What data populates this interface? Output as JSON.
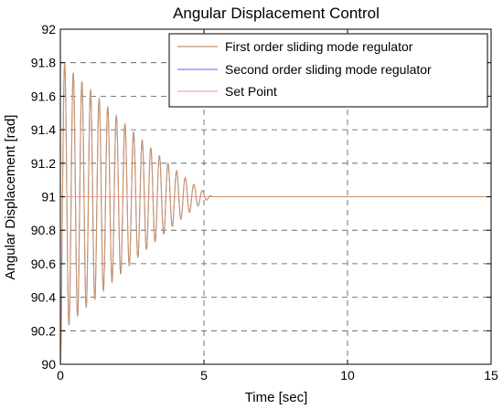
{
  "chart_data": {
    "type": "line",
    "title": "Angular Displacement Control",
    "xlabel": "Time [sec]",
    "ylabel": "Angular Displacement [rad]",
    "xlim": [
      0,
      15
    ],
    "ylim": [
      90,
      92
    ],
    "x_ticks": [
      0,
      5,
      10,
      15
    ],
    "y_ticks": [
      90,
      90.2,
      90.4,
      90.6,
      90.8,
      91,
      91.2,
      91.4,
      91.6,
      91.8,
      92
    ],
    "grid": true,
    "legend_position": "top-right",
    "series": [
      {
        "name": "First order sliding mode regulator",
        "color": "#c8956a",
        "oscillation": {
          "equilibrium": 91,
          "initial_value": 90,
          "peak_amplitude": 0.82,
          "period": 0.3,
          "envelope_end_time": 5.3,
          "settled_after": 5.3
        }
      },
      {
        "name": "Second order sliding mode regulator",
        "color": "#8080f0",
        "oscillation": {
          "equilibrium": 91,
          "initial_value": 90,
          "peak_amplitude": 0.82,
          "period": 0.3,
          "envelope_end_time": 5.3,
          "settled_after": 5.3
        }
      },
      {
        "name": "Set Point",
        "color": "#f5a8a8",
        "constant": 91
      }
    ]
  }
}
